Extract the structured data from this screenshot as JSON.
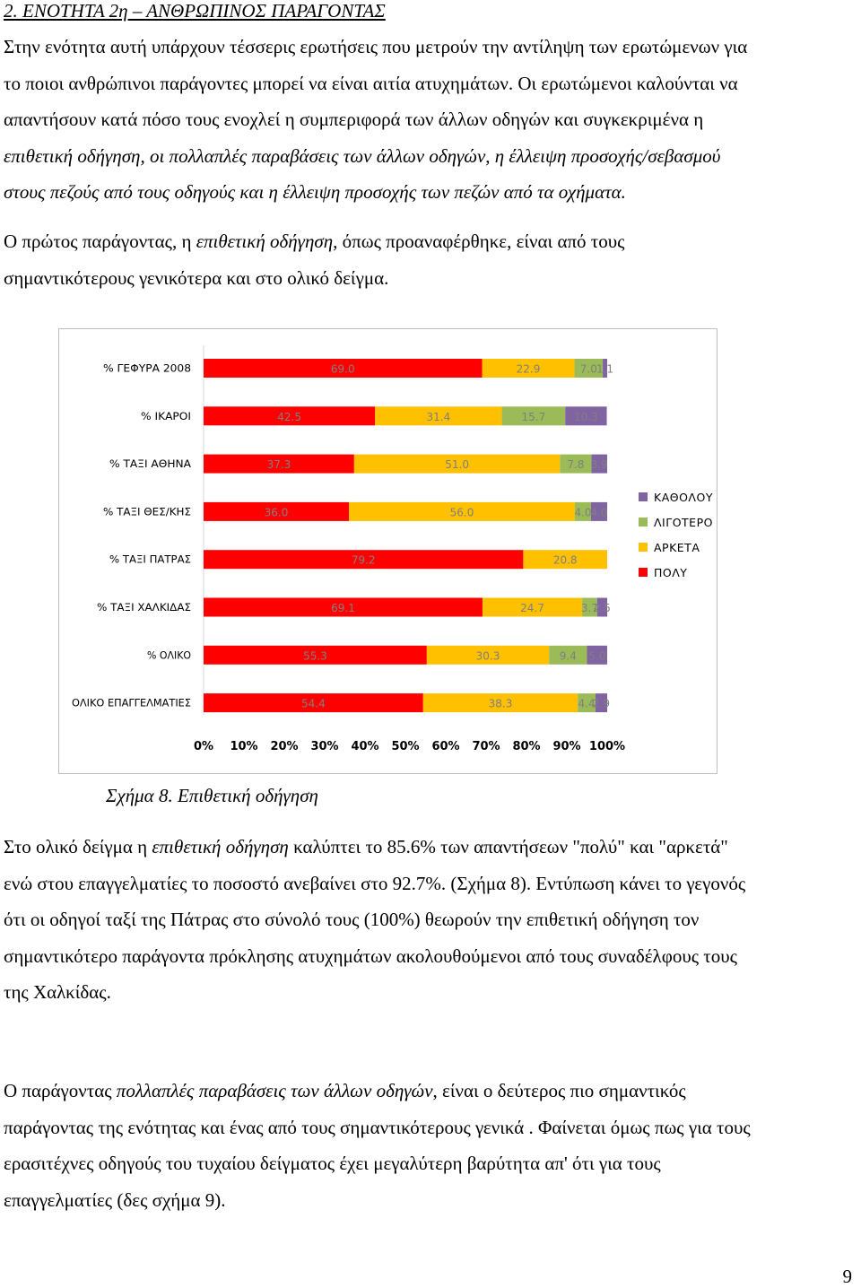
{
  "heading": "2. ΕΝΟΤΗΤΑ 2η – ΑΝΘΡΩΠΙΝΟΣ ΠΑΡΑΓΟΝΤΑΣ",
  "paragraph1": {
    "l1": "Στην ενότητα αυτή υπάρχουν τέσσερις ερωτήσεις που μετρούν την αντίληψη των ερωτώμενων για",
    "l2": "το ποιοι ανθρώπινοι παράγοντες μπορεί να είναι αιτία ατυχημάτων. Οι ερωτώμενοι καλούνται να",
    "l3": "απαντήσουν κατά πόσο τους ενοχλεί η συμπεριφορά των άλλων οδηγών  και συγκεκριμένα η",
    "l4": "επιθετική οδήγηση, οι πολλαπλές παραβάσεις των άλλων οδηγών, η έλλειψη προσοχής/σεβασμού",
    "l5": "στους πεζούς από τους οδηγούς και η έλλειψη προσοχής των πεζών από τα οχήματα."
  },
  "paragraph2": {
    "l1_a": "Ο πρώτος παράγοντας, η ",
    "l1_b": "επιθετική οδήγηση",
    "l1_c": ", όπως προαναφέρθηκε, είναι από τους",
    "l2": "σημαντικότερους γενικότερα και στο ολικό δείγμα."
  },
  "caption": {
    "label": "Σχήμα 8. Ε",
    "title": "πιθετική οδήγηση"
  },
  "paragraph3": {
    "l1_a": "Στο ολικό δείγμα η ",
    "l1_b": "επιθετική οδήγηση",
    "l1_c": " καλύπτει το 85.6% των απαντήσεων \"πολύ\" και \"αρκετά\"",
    "l2": "ενώ στου επαγγελματίες το ποσοστό ανεβαίνει στο 92.7%. (Σχήμα 8). Εντύπωση κάνει το γεγονός",
    "l3": "ότι οι οδηγοί ταξί της Πάτρας στο σύνολό τους (100%) θεωρούν την επιθετική οδήγηση τον",
    "l4": "σημαντικότερο παράγοντα πρόκλησης ατυχημάτων ακολουθούμενοι από τους συναδέλφους τους",
    "l5": "της Χαλκίδας."
  },
  "paragraph4": {
    "l1_a": "Ο παράγοντας ",
    "l1_b": "πολλαπλές παραβάσεις των άλλων οδηγών",
    "l1_c": ", είναι ο δεύτερος πιο σημαντικός",
    "l2": "παράγοντας της ενότητας και ένας από τους σημαντικότερους γενικά . Φαίνεται όμως  πως για τους",
    "l3": "ερασιτέχνες οδηγούς του τυχαίου δείγματος έχει μεγαλύτερη βαρύτητα απ' ότι για τους",
    "l4": "επαγγελματίες (δες σχήμα 9)."
  },
  "page_number": "9",
  "chart_data": {
    "type": "bar",
    "orientation": "horizontal",
    "stacked": "100%",
    "categories": [
      "% ΓΕΦΥΡΑ  2008",
      "% ΙΚΑΡΟΙ",
      "% ΤΑΞΙ  ΑΘΗΝΑ",
      "% ΤΑΞΙ ΘΕΣ/ΚΗΣ",
      "% ΤΑΞΙ ΠΑΤΡΑΣ",
      "% ΤΑΞΙ ΧΑΛΚΙΔΑΣ",
      "% ΟΛΙΚΟ",
      "ΟΛΙΚΟ ΕΠΑΓΓΕΛΜΑΤΙΕΣ"
    ],
    "series": [
      {
        "name": "ΠΟΛΥ",
        "color": "#ff0000",
        "values": [
          69.0,
          42.5,
          37.3,
          36.0,
          79.2,
          69.1,
          55.3,
          54.4
        ]
      },
      {
        "name": "ΑΡΚΕΤΑ",
        "color": "#ffc000",
        "values": [
          22.9,
          31.4,
          51.0,
          56.0,
          20.8,
          24.7,
          30.3,
          38.3
        ]
      },
      {
        "name": "ΛΙΓΟΤΕΡΟ",
        "color": "#9bbb59",
        "values": [
          7.0,
          15.7,
          7.8,
          4.0,
          0,
          3.7,
          9.4,
          4.4
        ]
      },
      {
        "name": "ΚΑΘΟΛΟΥ",
        "color": "#8064a2",
        "values": [
          1.1,
          10.3,
          3.9,
          4.0,
          0,
          2.5,
          5.0,
          2.9
        ]
      }
    ],
    "data_labels": [
      [
        "69.0",
        "22.9",
        "7.0",
        "1.1"
      ],
      [
        "42.5",
        "31.4",
        "15.7",
        "10.3"
      ],
      [
        "37.3",
        "51.0",
        "7.8",
        "3.9"
      ],
      [
        "36.0",
        "56.0",
        "4.0",
        "4.0"
      ],
      [
        "79.2",
        "20.8",
        "",
        ""
      ],
      [
        "69.1",
        "24.7",
        "3.7",
        "2.5"
      ],
      [
        "55.3",
        "30.3",
        "9.4",
        "5.0"
      ],
      [
        "54.4",
        "38.3",
        "4.4",
        "2.9"
      ]
    ],
    "x_ticks": [
      "0%",
      "10%",
      "20%",
      "30%",
      "40%",
      "50%",
      "60%",
      "70%",
      "80%",
      "90%",
      "100%"
    ],
    "xlim": [
      0,
      100
    ],
    "legend_order": [
      "ΚΑΘΟΛΟΥ",
      "ΛΙΓΟΤΕΡΟ",
      "ΑΡΚΕΤΑ",
      "ΠΟΛΥ"
    ],
    "legend_position": "right",
    "grid": false
  }
}
